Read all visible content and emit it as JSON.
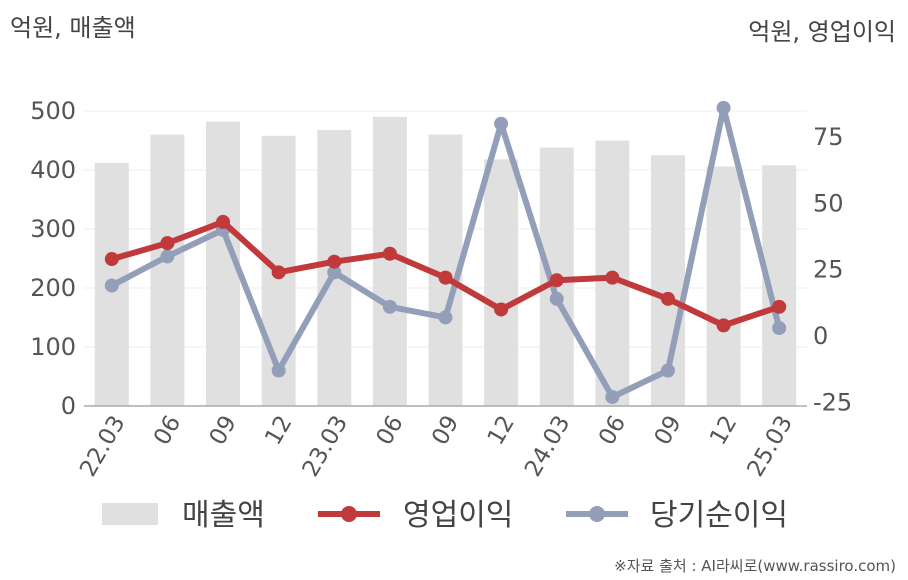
{
  "chart_data": {
    "type": "bar+line",
    "left_axis_label": "억원, 매출액",
    "right_axis_label": "억원, 영업이익",
    "categories": [
      "22.03",
      "06",
      "09",
      "12",
      "23.03",
      "06",
      "09",
      "12",
      "24.03",
      "06",
      "09",
      "12",
      "25.03"
    ],
    "series": [
      {
        "name": "매출액",
        "type": "bar",
        "axis": "left",
        "color": "#e0e0e0",
        "values": [
          412,
          460,
          482,
          458,
          468,
          490,
          460,
          418,
          438,
          450,
          425,
          406,
          408
        ]
      },
      {
        "name": "영업이익",
        "type": "line",
        "axis": "right",
        "color": "#c0393b",
        "values": [
          29,
          35,
          43,
          24,
          28,
          31,
          22,
          10,
          21,
          22,
          14,
          4,
          11
        ]
      },
      {
        "name": "당기순이익",
        "type": "line",
        "axis": "right",
        "color": "#939eb8",
        "values": [
          19,
          30,
          40,
          -13,
          24,
          11,
          7,
          80,
          14,
          -23,
          -13,
          86,
          3
        ]
      }
    ],
    "left_ylim": [
      0,
      500
    ],
    "left_yticks": [
      0,
      100,
      200,
      300,
      400,
      500
    ],
    "right_ylim": [
      -25,
      75
    ],
    "right_yticks": [
      -25,
      0,
      25,
      50,
      75
    ],
    "grid": true,
    "legend_position": "bottom"
  },
  "source_note": "※자료 출처 : AI라씨로(www.rassiro.com)"
}
